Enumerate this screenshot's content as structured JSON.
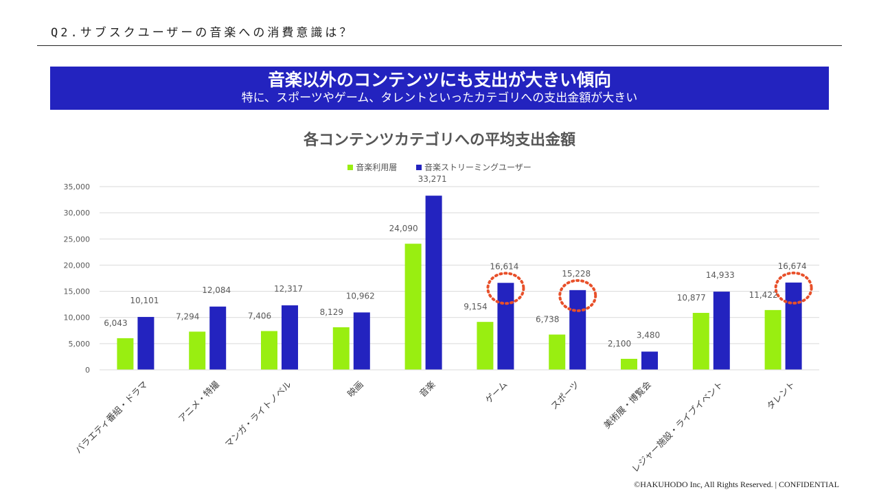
{
  "header": {
    "question": "Q2.サブスクユーザーの音楽への消費意識は？"
  },
  "banner": {
    "headline": "音楽以外のコンテンツにも支出が大きい傾向",
    "subline": "特に、スポーツやゲーム、タレントといったカテゴリへの支出金額が大きい",
    "background_color": "#2323bf"
  },
  "chart_data": {
    "type": "bar",
    "title": "各コンテンツカテゴリへの平均支出金額",
    "xlabel": "",
    "ylabel": "",
    "ylim": [
      0,
      35000
    ],
    "yticks": [
      0,
      5000,
      10000,
      15000,
      20000,
      25000,
      30000,
      35000
    ],
    "ytick_labels": [
      "0",
      "5,000",
      "10,000",
      "15,000",
      "20,000",
      "25,000",
      "30,000",
      "35,000"
    ],
    "grid": true,
    "legend_position": "top-center",
    "categories": [
      "バラエティ番組・ドラマ",
      "アニメ・特撮",
      "マンガ・ライトノベル",
      "映画",
      "音楽",
      "ゲーム",
      "スポーツ",
      "美術展・博覧会",
      "レジャー施設・ライブイベント",
      "タレント"
    ],
    "series": [
      {
        "name": "音楽利用層",
        "color": "#99ee11",
        "values": [
          6043,
          7294,
          7406,
          8129,
          24090,
          9154,
          6738,
          2100,
          10877,
          11422
        ],
        "labels": [
          "6,043",
          "7,294",
          "7,406",
          "8,129",
          "24,090",
          "9,154",
          "6,738",
          "2,100",
          "10,877",
          "11,422"
        ]
      },
      {
        "name": "音楽ストリーミングユーザー",
        "color": "#2323bf",
        "values": [
          10101,
          12084,
          12317,
          10962,
          33271,
          16614,
          15228,
          3480,
          14933,
          16674
        ],
        "labels": [
          "10,101",
          "12,084",
          "12,317",
          "10,962",
          "33,271",
          "16,614",
          "15,228",
          "3,480",
          "14,933",
          "16,674"
        ]
      }
    ],
    "highlighted_categories": [
      "ゲーム",
      "スポーツ",
      "タレント"
    ],
    "highlight_color": "#e8502a"
  },
  "footer": {
    "copyright": "©HAKUHODO Inc, All  Rights  Reserved. | CONFIDENTIAL"
  }
}
